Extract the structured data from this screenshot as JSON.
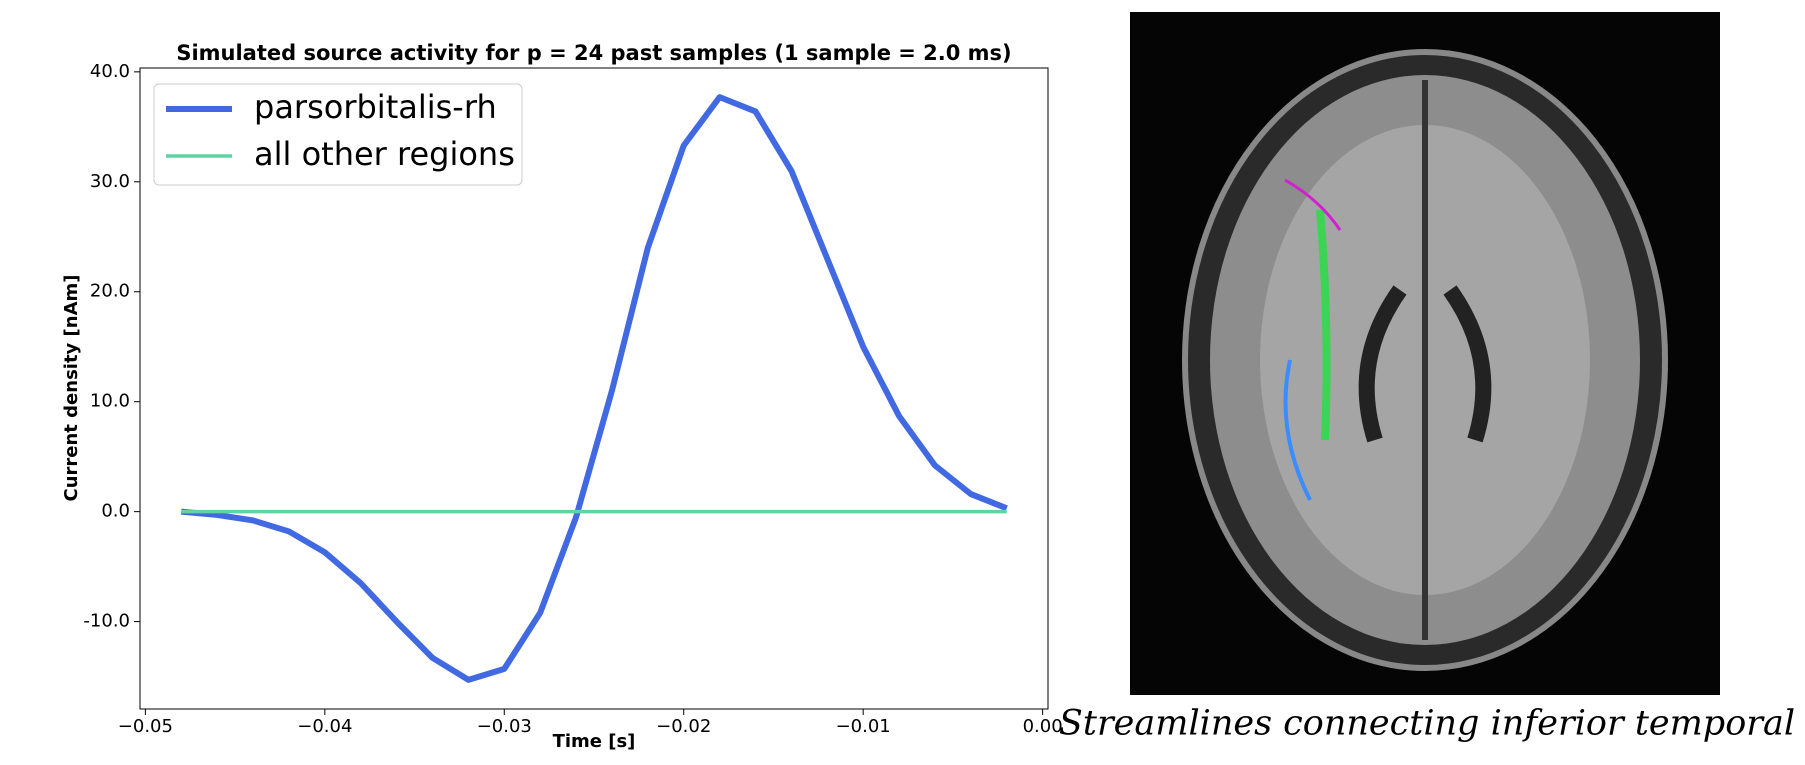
{
  "chart_data": {
    "type": "line",
    "title": "Simulated source activity for p = 24 past samples (1 sample = 2.0 ms)",
    "xlabel": "Time [s]",
    "ylabel": "Current density [nAm]",
    "x": [
      -0.048,
      -0.046,
      -0.044,
      -0.042,
      -0.04,
      -0.038,
      -0.036,
      -0.034,
      -0.032,
      -0.03,
      -0.028,
      -0.026,
      -0.024,
      -0.022,
      -0.02,
      -0.018,
      -0.016,
      -0.014,
      -0.012,
      -0.01,
      -0.008,
      -0.006,
      -0.004,
      -0.002
    ],
    "series": [
      {
        "name": "parsorbitalis-rh",
        "color": "#4169e1",
        "values": [
          0,
          -0.3,
          -0.8,
          -1.8,
          -3.7,
          -6.5,
          -10,
          -13.3,
          -15.3,
          -14.3,
          -9.2,
          -0.5,
          11,
          24,
          33.3,
          37.7,
          36.4,
          31,
          23,
          15,
          8.7,
          4.2,
          1.6,
          0.3
        ]
      },
      {
        "name": "all other regions",
        "color": "#5fd3a0",
        "values": [
          0,
          0,
          0,
          0,
          0,
          0,
          0,
          0,
          0,
          0,
          0,
          0,
          0,
          0,
          0,
          0,
          0,
          0,
          0,
          0,
          0,
          0,
          0,
          0
        ]
      }
    ],
    "xlim": [
      -0.0503,
      0.0003
    ],
    "ylim": [
      -17.95,
      40.35
    ],
    "xticks": [
      {
        "value": -0.05,
        "label": "−0.05"
      },
      {
        "value": -0.04,
        "label": "−0.04"
      },
      {
        "value": -0.03,
        "label": "−0.03"
      },
      {
        "value": -0.02,
        "label": "−0.02"
      },
      {
        "value": -0.01,
        "label": "−0.01"
      },
      {
        "value": 0,
        "label": "0.00"
      }
    ],
    "yticks": [
      {
        "value": -10,
        "label": "-10.0"
      },
      {
        "value": 0,
        "label": "0.0"
      },
      {
        "value": 10,
        "label": "10.0"
      },
      {
        "value": 20,
        "label": "20.0"
      },
      {
        "value": 30,
        "label": "30.0"
      },
      {
        "value": 40,
        "label": "40.0"
      }
    ],
    "legend": "upper left",
    "caption": "Streamlines connecting inferior temporal"
  }
}
